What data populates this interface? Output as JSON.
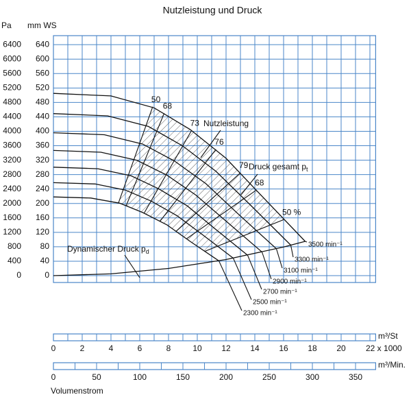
{
  "chart_data": {
    "type": "line",
    "title": "Nutzleistung und Druck",
    "y_label": "Pa",
    "y2_label": "mm WS",
    "ylim": [
      -190,
      6650
    ],
    "yticks": [
      0,
      400,
      800,
      1200,
      1600,
      2000,
      2400,
      2800,
      3200,
      3600,
      4000,
      4400,
      4800,
      5200,
      5600,
      6000,
      6400
    ],
    "y2lim": [
      -19,
      665
    ],
    "y2ticks": [
      0,
      40,
      80,
      120,
      160,
      200,
      240,
      280,
      320,
      360,
      400,
      440,
      480,
      520,
      560,
      600,
      640
    ],
    "xlim": [
      0,
      22.4
    ],
    "xticks": [
      0,
      2,
      4,
      6,
      8,
      10,
      12,
      14,
      16,
      18,
      20,
      {
        "value": 22,
        "label": "22 x 1000"
      }
    ],
    "xminor": [
      1,
      3,
      5,
      7,
      9,
      11,
      13,
      15,
      17,
      19,
      21
    ],
    "x_label": "m³/St",
    "x2lim": [
      0,
      373.3
    ],
    "x2ticks": [
      0,
      50,
      100,
      150,
      200,
      250,
      300,
      350
    ],
    "x2minor": [
      25,
      75,
      125,
      175,
      225,
      275,
      325
    ],
    "x2_label": "m³/Min.",
    "x_title": "Volumenstrom",
    "grid": true,
    "grid_color": "#4a86c8",
    "line_color": "#111111",
    "series": [
      {
        "name": "3500 min⁻¹",
        "x": [
          0,
          4,
          7,
          9.5,
          12,
          14.5,
          17.5
        ],
        "values": [
          5050,
          4980,
          4650,
          4050,
          3250,
          2200,
          950
        ]
      },
      {
        "name": "3300 min⁻¹",
        "x": [
          0,
          3.77,
          6.6,
          8.96,
          11.3,
          13.7,
          16.5
        ],
        "values": [
          4490,
          4427,
          4134,
          3600,
          2889,
          1956,
          845
        ]
      },
      {
        "name": "3100 min⁻¹",
        "x": [
          0,
          3.54,
          6.2,
          8.42,
          10.6,
          12.8,
          15.5
        ],
        "values": [
          3960,
          3904,
          3646,
          3175,
          2548,
          1725,
          745
        ]
      },
      {
        "name": "2900 min⁻¹",
        "x": [
          0,
          3.3,
          5.8,
          7.9,
          9.9,
          12.0,
          14.5
        ],
        "values": [
          3470,
          3420,
          3195,
          2782,
          2233,
          1511,
          653
        ]
      },
      {
        "name": "2700 min⁻¹",
        "x": [
          0,
          3.1,
          5.4,
          7.3,
          9.3,
          11.2,
          13.5
        ],
        "values": [
          3005,
          2963,
          2767,
          2410,
          1934,
          1309,
          565
        ]
      },
      {
        "name": "2500 min⁻¹",
        "x": [
          0,
          2.9,
          5.0,
          6.8,
          8.6,
          10.4,
          12.5
        ],
        "values": [
          2576,
          2540,
          2372,
          2066,
          1658,
          1122,
          485
        ]
      },
      {
        "name": "2300 min⁻¹",
        "x": [
          0,
          2.6,
          4.6,
          6.2,
          7.9,
          9.5,
          11.5
        ],
        "values": [
          2182,
          2151,
          2009,
          1750,
          1404,
          950,
          410
        ]
      }
    ],
    "dynamic_pressure": {
      "text": "Dynamischer Druck p",
      "sub": "d",
      "x": [
        0,
        4,
        8,
        12,
        16,
        17.5
      ],
      "values": [
        0,
        50,
        199,
        447,
        794,
        950
      ]
    },
    "efficiency_lines": [
      {
        "label": "50",
        "x": [
          6.9,
          4.53
        ],
        "values": [
          4680,
          2022
        ]
      },
      {
        "label": "68",
        "x": [
          7.7,
          5.06
        ],
        "values": [
          4500,
          1944
        ]
      },
      {
        "label": "73",
        "x": [
          9.6,
          6.31
        ],
        "values": [
          4020,
          1737
        ]
      },
      {
        "label": "76",
        "x": [
          11.3,
          7.42
        ],
        "values": [
          3500,
          1512
        ]
      },
      {
        "label": "79",
        "x": [
          13.0,
          8.54
        ],
        "values": [
          2850,
          1231
        ]
      },
      {
        "label": "68",
        "x": [
          14.1,
          9.26
        ],
        "values": [
          2370,
          1024
        ]
      },
      {
        "label": "50 %",
        "x": [
          16.0,
          10.5
        ],
        "values": [
          1550,
          670
        ]
      }
    ],
    "annotations": {
      "power": {
        "text": "Nutzleistung"
      },
      "total_pressure": {
        "text": "Druck gesamt p",
        "sub": "t"
      }
    }
  }
}
